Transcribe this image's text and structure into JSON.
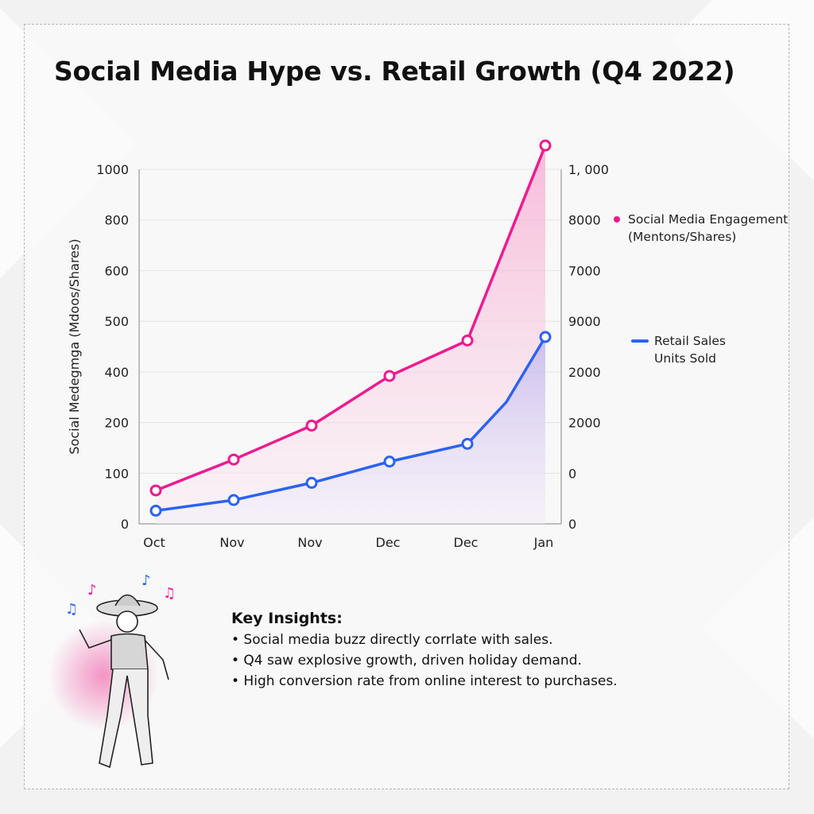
{
  "title": "Social Media Hype vs. Retail Growth (Q4 2022)",
  "colors": {
    "engagement": "#ee1a8f",
    "sales": "#2b62f5",
    "grid": "#e3e3e3"
  },
  "chart_data": {
    "type": "line",
    "title": "Social Media Hype vs. Retail Growth (Q4 2022)",
    "categories": [
      "Oct",
      "Nov",
      "Nov",
      "Dec",
      "Dec",
      "Jan"
    ],
    "ylabel": "Social Medegmga (Mdoos/Shares)",
    "left_ticks": [
      "0",
      "100",
      "200",
      "400",
      "500",
      "600",
      "800",
      "1000"
    ],
    "right_ticks": [
      "0",
      "0",
      "2000",
      "2000",
      "9000",
      "7000",
      "8000",
      "1, 000"
    ],
    "ylim": [
      0,
      1000
    ],
    "grid": true,
    "legend_position": "right",
    "series": [
      {
        "name": "Social Media Engagement (Mentons/Shares)",
        "line1": "Social Media Engagement",
        "line2": "(Mentons/Shares)",
        "marker": "dot",
        "x": [
          0,
          1,
          2,
          3,
          4,
          5
        ],
        "values": [
          66,
          127,
          194,
          384,
          462,
          1094
        ]
      },
      {
        "name": "Retail Sales Units Sold",
        "line1": "Retail Sales",
        "line2": "Units Sold",
        "marker": "line",
        "x": [
          0,
          1,
          2,
          3,
          4,
          4.5,
          5
        ],
        "values": [
          26,
          47,
          81,
          123,
          158,
          281,
          469
        ],
        "markers_at": [
          0,
          1,
          2,
          3,
          4,
          6
        ]
      }
    ]
  },
  "insights": {
    "heading": "Key Insights:",
    "items": [
      "• Social media buzz directly corrlate with sales.",
      "• Q4 saw explosive growth, driven holiday demand.",
      "• High conversion rate from online interest to purchases."
    ]
  },
  "illustration": {
    "subject": "dancing-cowgirl-icon"
  }
}
